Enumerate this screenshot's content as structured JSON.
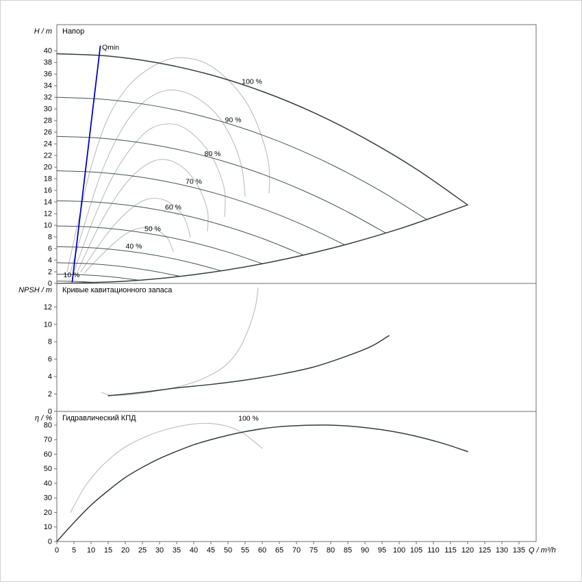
{
  "colors": {
    "dark": "#333b3e",
    "thin": "#455054",
    "gray": "#bcbcbc",
    "blue": "#0000cd",
    "axis": "#6e6e6e",
    "text": "#000000"
  },
  "x_axis": {
    "label": "Q / m³/h",
    "min": 0,
    "max": 140,
    "ticks": [
      0,
      5,
      10,
      15,
      20,
      25,
      30,
      35,
      40,
      45,
      50,
      55,
      60,
      65,
      70,
      75,
      80,
      85,
      90,
      95,
      100,
      105,
      110,
      115,
      120,
      125,
      130,
      135
    ]
  },
  "chart_data": [
    {
      "type": "line",
      "id": "head",
      "title": "Напор",
      "ylabel": "H / m",
      "ylim": [
        0,
        44.5
      ],
      "y_ticks": [
        0,
        2,
        4,
        6,
        8,
        10,
        12,
        14,
        16,
        18,
        20,
        22,
        24,
        26,
        28,
        30,
        32,
        34,
        36,
        38,
        40
      ],
      "series": [
        {
          "name": "iso-contour-1",
          "style": "gray",
          "points": [
            [
              3,
              2
            ],
            [
              6,
              10
            ],
            [
              10,
              20
            ],
            [
              15,
              28.5
            ],
            [
              21,
              34
            ],
            [
              28,
              37.3
            ],
            [
              35,
              38.8
            ],
            [
              43,
              38
            ],
            [
              50,
              35
            ],
            [
              56,
              30.5
            ],
            [
              60,
              25
            ],
            [
              62,
              20
            ],
            [
              62,
              15.5
            ]
          ]
        },
        {
          "name": "iso-contour-2",
          "style": "gray",
          "points": [
            [
              4,
              2
            ],
            [
              8,
              10
            ],
            [
              13,
              19
            ],
            [
              19,
              26.5
            ],
            [
              25,
              31
            ],
            [
              32,
              33.2
            ],
            [
              39,
              32.5
            ],
            [
              46,
              29.5
            ],
            [
              51,
              25
            ],
            [
              54,
              20
            ],
            [
              55,
              15
            ]
          ]
        },
        {
          "name": "iso-contour-3",
          "style": "gray",
          "points": [
            [
              5,
              2
            ],
            [
              10,
              10
            ],
            [
              16,
              18
            ],
            [
              22,
              23.5
            ],
            [
              28,
              26.8
            ],
            [
              35,
              27.3
            ],
            [
              41,
              25
            ],
            [
              46,
              21
            ],
            [
              49,
              16
            ],
            [
              49,
              11.5
            ]
          ]
        },
        {
          "name": "iso-contour-4",
          "style": "gray",
          "points": [
            [
              6,
              2
            ],
            [
              12,
              9.5
            ],
            [
              18,
              15.5
            ],
            [
              24,
              19.5
            ],
            [
              30,
              21.3
            ],
            [
              36,
              20.3
            ],
            [
              41,
              17
            ],
            [
              44,
              12.5
            ],
            [
              44,
              9
            ]
          ]
        },
        {
          "name": "iso-contour-5",
          "style": "gray",
          "points": [
            [
              7,
              2
            ],
            [
              14,
              8
            ],
            [
              20,
              12
            ],
            [
              26,
              14.4
            ],
            [
              32,
              14.2
            ],
            [
              37,
              11.5
            ],
            [
              39,
              8
            ]
          ]
        },
        {
          "name": "iso-contour-6",
          "style": "gray",
          "points": [
            [
              8,
              1.8
            ],
            [
              15,
              6
            ],
            [
              21,
              8.8
            ],
            [
              27,
              9.6
            ],
            [
              32,
              8
            ],
            [
              34,
              5.5
            ]
          ]
        },
        {
          "name": "speed-90",
          "style": "thin",
          "points": [
            [
              0,
              32
            ],
            [
              13.5,
              31.67
            ],
            [
              27,
              30.69
            ],
            [
              40.5,
              29.05
            ],
            [
              54,
              26.75
            ],
            [
              67.5,
              23.8
            ],
            [
              81,
              20.19
            ],
            [
              94.5,
              15.93
            ],
            [
              108,
              11.01
            ]
          ]
        },
        {
          "name": "speed-80",
          "style": "thin",
          "points": [
            [
              0,
              25.28
            ],
            [
              12,
              25.02
            ],
            [
              24,
              24.24
            ],
            [
              36,
              22.95
            ],
            [
              48,
              21.13
            ],
            [
              60,
              18.8
            ],
            [
              72,
              15.95
            ],
            [
              84,
              12.58
            ],
            [
              96,
              8.69
            ]
          ]
        },
        {
          "name": "speed-70",
          "style": "thin",
          "points": [
            [
              0,
              19.36
            ],
            [
              12,
              19.1
            ],
            [
              24,
              18.32
            ],
            [
              36,
              17.03
            ],
            [
              48,
              15.21
            ],
            [
              60,
              12.88
            ],
            [
              72,
              10.03
            ],
            [
              84,
              6.66
            ]
          ]
        },
        {
          "name": "speed-60",
          "style": "thin",
          "points": [
            [
              0,
              14.22
            ],
            [
              12,
              13.96
            ],
            [
              24,
              13.18
            ],
            [
              36,
              11.89
            ],
            [
              48,
              10.07
            ],
            [
              60,
              7.74
            ],
            [
              72,
              4.89
            ]
          ]
        },
        {
          "name": "speed-50",
          "style": "thin",
          "points": [
            [
              0,
              9.88
            ],
            [
              10,
              9.7
            ],
            [
              20,
              9.16
            ],
            [
              30,
              8.26
            ],
            [
              40,
              7
            ],
            [
              50,
              5.38
            ],
            [
              60,
              3.4
            ]
          ]
        },
        {
          "name": "speed-40",
          "style": "thin",
          "points": [
            [
              0,
              6.32
            ],
            [
              8,
              6.2
            ],
            [
              16,
              5.86
            ],
            [
              24,
              5.28
            ],
            [
              32,
              4.48
            ],
            [
              40,
              3.44
            ],
            [
              48,
              2.17
            ]
          ]
        },
        {
          "name": "speed-30",
          "style": "thin",
          "points": [
            [
              0,
              3.56
            ],
            [
              9,
              3.41
            ],
            [
              18,
              2.97
            ],
            [
              27,
              2.24
            ],
            [
              36,
              1.22
            ]
          ]
        },
        {
          "name": "speed-20",
          "style": "thin",
          "points": [
            [
              0,
              1.58
            ],
            [
              6,
              1.52
            ],
            [
              12,
              1.32
            ],
            [
              18,
              1
            ],
            [
              24,
              0.54
            ]
          ]
        },
        {
          "name": "speed-10",
          "style": "thin",
          "points": [
            [
              0,
              0.4
            ],
            [
              4,
              0.37
            ],
            [
              8,
              0.28
            ],
            [
              12,
              0.14
            ]
          ]
        },
        {
          "name": "speed-100-max",
          "style": "dark",
          "points": [
            [
              0,
              39.5
            ],
            [
              15,
              39.1
            ],
            [
              30,
              37.88
            ],
            [
              45,
              35.86
            ],
            [
              60,
              33.02
            ],
            [
              75,
              29.38
            ],
            [
              90,
              24.92
            ],
            [
              105,
              19.66
            ],
            [
              120,
              13.5
            ]
          ]
        },
        {
          "name": "envelope-min",
          "style": "dark",
          "points": [
            [
              0,
              0
            ],
            [
              20,
              0.38
            ],
            [
              40,
              1.5
            ],
            [
              60,
              3.38
            ],
            [
              80,
              6
            ],
            [
              100,
              9.38
            ],
            [
              120,
              13.5
            ]
          ]
        },
        {
          "name": "qmin-line",
          "style": "blue",
          "points": [
            [
              4.5,
              0.3
            ],
            [
              12.7,
              40.8
            ]
          ]
        }
      ],
      "annotations": [
        {
          "text": "Qmin",
          "x": 13.2,
          "y": 40.2,
          "anchor": "start"
        },
        {
          "text": "100 %",
          "x": 57,
          "y": 34.3,
          "anchor": "middle"
        },
        {
          "text": "90 %",
          "x": 51.5,
          "y": 27.7,
          "anchor": "middle"
        },
        {
          "text": "80 %",
          "x": 45.5,
          "y": 21.9,
          "anchor": "middle"
        },
        {
          "text": "70 %",
          "x": 40,
          "y": 17.1,
          "anchor": "middle"
        },
        {
          "text": "60 %",
          "x": 34,
          "y": 12.7,
          "anchor": "middle"
        },
        {
          "text": "50 %",
          "x": 28,
          "y": 9.0,
          "anchor": "middle"
        },
        {
          "text": "40 %",
          "x": 22.5,
          "y": 6.0,
          "anchor": "middle"
        },
        {
          "text": "10 %",
          "x": 4.3,
          "y": 1.05,
          "anchor": "middle"
        }
      ]
    },
    {
      "type": "line",
      "id": "npsh",
      "title": "Кривые кавитационного запаса",
      "ylabel": "NPSH / m",
      "ylim": [
        0,
        14.7
      ],
      "y_ticks": [
        0,
        2,
        4,
        6,
        8,
        10,
        12
      ],
      "series": [
        {
          "name": "npsh-gray",
          "style": "gray",
          "points": [
            [
              13,
              2.2
            ],
            [
              16,
              1.85
            ],
            [
              22,
              1.95
            ],
            [
              30,
              2.4
            ],
            [
              38,
              3.1
            ],
            [
              44,
              4
            ],
            [
              49,
              5.2
            ],
            [
              53,
              7
            ],
            [
              56,
              9.5
            ],
            [
              58,
              12
            ],
            [
              58.8,
              14.2
            ]
          ]
        },
        {
          "name": "npsh-main",
          "style": "dark",
          "points": [
            [
              15,
              1.8
            ],
            [
              25,
              2.2
            ],
            [
              35,
              2.7
            ],
            [
              45,
              3.1
            ],
            [
              55,
              3.6
            ],
            [
              65,
              4.25
            ],
            [
              75,
              5.1
            ],
            [
              85,
              6.4
            ],
            [
              92,
              7.5
            ],
            [
              97,
              8.7
            ]
          ]
        }
      ],
      "annotations": []
    },
    {
      "type": "line",
      "id": "efficiency",
      "title": "Гидравлический КПД",
      "ylabel": "η / %",
      "ylim": [
        0,
        89.4
      ],
      "y_ticks": [
        0,
        10,
        20,
        30,
        40,
        50,
        60,
        70,
        80
      ],
      "series": [
        {
          "name": "eff-gray",
          "style": "gray",
          "points": [
            [
              4,
              20
            ],
            [
              8,
              37
            ],
            [
              12,
              49
            ],
            [
              16,
              58
            ],
            [
              20,
              65
            ],
            [
              24,
              70
            ],
            [
              28,
              74
            ],
            [
              32,
              77
            ],
            [
              36,
              79.3
            ],
            [
              40,
              80.8
            ],
            [
              44,
              81.2
            ],
            [
              48,
              80.2
            ],
            [
              52,
              77.4
            ],
            [
              55,
              73.5
            ],
            [
              58,
              68
            ],
            [
              60,
              64
            ]
          ]
        },
        {
          "name": "eff-main",
          "style": "dark",
          "points": [
            [
              0,
              0
            ],
            [
              5,
              13
            ],
            [
              10,
              25
            ],
            [
              15,
              35
            ],
            [
              20,
              44
            ],
            [
              25,
              51
            ],
            [
              30,
              57
            ],
            [
              35,
              62
            ],
            [
              40,
              66.5
            ],
            [
              45,
              70
            ],
            [
              50,
              73
            ],
            [
              55,
              75.5
            ],
            [
              60,
              77.5
            ],
            [
              65,
              78.9
            ],
            [
              70,
              79.6
            ],
            [
              75,
              80
            ],
            [
              80,
              80
            ],
            [
              85,
              79.4
            ],
            [
              90,
              78.3
            ],
            [
              95,
              76.8
            ],
            [
              100,
              74.8
            ],
            [
              105,
              72.3
            ],
            [
              110,
              69.3
            ],
            [
              115,
              65.8
            ],
            [
              120,
              61.8
            ]
          ]
        }
      ],
      "annotations": [
        {
          "text": "100 %",
          "x": 56,
          "y": 83,
          "anchor": "middle"
        }
      ]
    }
  ]
}
